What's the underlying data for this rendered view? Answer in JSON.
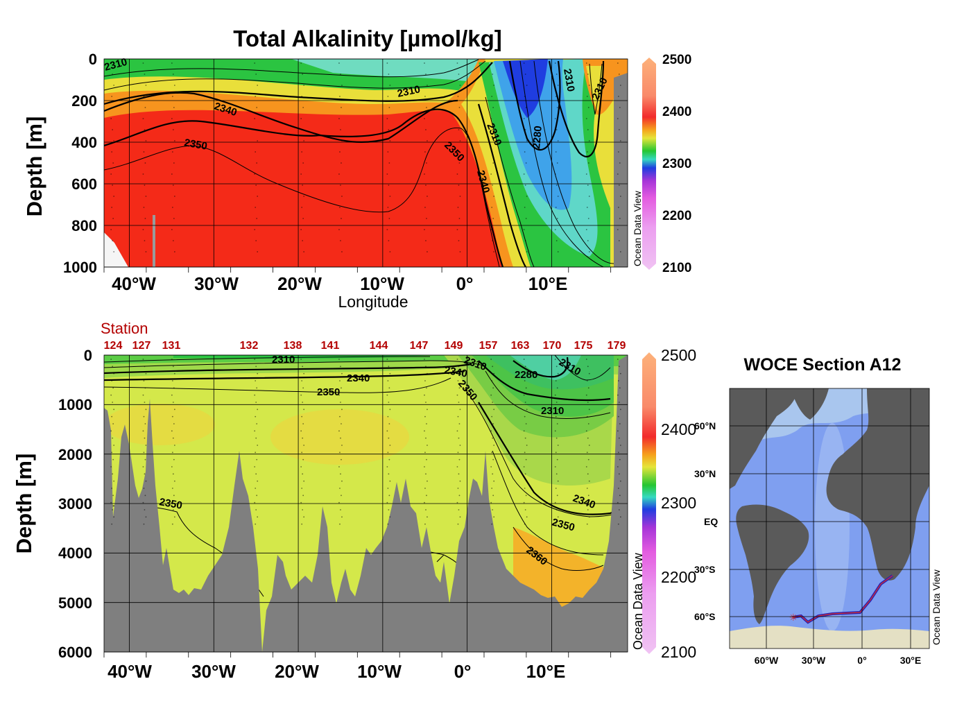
{
  "chart_data": [
    {
      "type": "heatmap",
      "title": "Total Alkalinity [µmol/kg]",
      "xlabel": "Longitude",
      "ylabel": "Depth [m]",
      "xlim": [
        -43,
        19
      ],
      "ylim": [
        0,
        1000
      ],
      "y_inverted": true,
      "x_ticks": [
        -40,
        -30,
        -20,
        -10,
        0,
        10
      ],
      "x_tick_labels": [
        "40°W",
        "30°W",
        "20°W",
        "10°W",
        "0°",
        "10°E"
      ],
      "y_ticks": [
        0,
        200,
        400,
        600,
        800,
        1000
      ],
      "y_tick_labels": [
        "0",
        "200",
        "400",
        "600",
        "800",
        "1000"
      ],
      "colorbar": {
        "min": 2100,
        "max": 2500,
        "ticks": [
          "2500",
          "2400",
          "2300",
          "2200",
          "2100"
        ]
      },
      "contour_labels": [
        {
          "text": "2310",
          "lon": -41,
          "depth": 45
        },
        {
          "text": "2310",
          "lon": -5.5,
          "depth": 150
        },
        {
          "text": "2340",
          "lon": -27,
          "depth": 240
        },
        {
          "text": "2350",
          "lon": -33,
          "depth": 410
        },
        {
          "text": "2350",
          "lon": -1,
          "depth": 440
        },
        {
          "text": "2310",
          "lon": 3.7,
          "depth": 370
        },
        {
          "text": "2340",
          "lon": 2.5,
          "depth": 600
        },
        {
          "text": "2280",
          "lon": 9,
          "depth": 360
        },
        {
          "text": "2310",
          "lon": 12,
          "depth": 120
        },
        {
          "text": "2310",
          "lon": 17.5,
          "depth": 140
        }
      ],
      "watermark": "Ocean Data View",
      "grid": true
    },
    {
      "type": "heatmap",
      "xlabel": "",
      "ylabel": "Depth [m]",
      "xlim": [
        -43,
        19
      ],
      "ylim": [
        0,
        6000
      ],
      "y_inverted": true,
      "x_ticks": [
        -40,
        -30,
        -20,
        -10,
        0,
        10
      ],
      "x_tick_labels": [
        "40°W",
        "30°W",
        "20°W",
        "10°W",
        "0°",
        "10°E"
      ],
      "y_ticks": [
        0,
        1000,
        2000,
        3000,
        4000,
        5000,
        6000
      ],
      "y_tick_labels": [
        "0",
        "1000",
        "2000",
        "3000",
        "4000",
        "5000",
        "6000"
      ],
      "colorbar": {
        "min": 2100,
        "max": 2500,
        "ticks": [
          "2500",
          "2400",
          "2300",
          "2200",
          "2100"
        ]
      },
      "station_label": "Station",
      "stations": [
        {
          "id": "124",
          "lon": -42
        },
        {
          "id": "127",
          "lon": -38.2
        },
        {
          "id": "131",
          "lon": -34.8
        },
        {
          "id": "132",
          "lon": -25
        },
        {
          "id": "138",
          "lon": -19.5
        },
        {
          "id": "141",
          "lon": -15
        },
        {
          "id": "144",
          "lon": -9.3
        },
        {
          "id": "147",
          "lon": -4.9
        },
        {
          "id": "149",
          "lon": -1
        },
        {
          "id": "157",
          "lon": 3
        },
        {
          "id": "163",
          "lon": 6.9
        },
        {
          "id": "170",
          "lon": 10.6
        },
        {
          "id": "175",
          "lon": 14.3
        },
        {
          "id": "179",
          "lon": 18
        }
      ],
      "contour_labels": [
        {
          "text": "2310",
          "lon": -21,
          "depth": 90
        },
        {
          "text": "2340",
          "lon": -12,
          "depth": 470
        },
        {
          "text": "2350",
          "lon": -16,
          "depth": 740
        },
        {
          "text": "2340",
          "lon": -0.5,
          "depth": 290
        },
        {
          "text": "2310",
          "lon": 2,
          "depth": 190
        },
        {
          "text": "2350",
          "lon": 0.8,
          "depth": 750
        },
        {
          "text": "2280",
          "lon": 8.5,
          "depth": 380
        },
        {
          "text": "2310",
          "lon": 11.7,
          "depth": 230
        },
        {
          "text": "2310",
          "lon": 11,
          "depth": 1120
        },
        {
          "text": "2350",
          "lon": -37,
          "depth": 3030
        },
        {
          "text": "2340",
          "lon": 14.7,
          "depth": 3030
        },
        {
          "text": "2350",
          "lon": 12.3,
          "depth": 3450
        },
        {
          "text": "2360",
          "lon": 9,
          "depth": 4170
        }
      ],
      "watermark": "Ocean Data View",
      "grid": true
    },
    {
      "type": "map",
      "title": "WOCE Section A12",
      "lat_labels": [
        "60°N",
        "30°N",
        "EQ",
        "30°S",
        "60°S"
      ],
      "lon_labels": [
        "60°W",
        "30°W",
        "0°",
        "30°E"
      ],
      "watermark": "Ocean Data View"
    }
  ],
  "colors": {
    "red": "#f42a18",
    "orange": "#f7941e",
    "yellow_green": "#d4e84a",
    "green": "#29c43c",
    "cyan": "#5fd7c8",
    "blue": "#1f3de0",
    "bathymetry": "#7f7f7f",
    "station_red": "#b30000",
    "map_land": "#5a5a5a",
    "map_ocean": "#7f9ff0"
  }
}
